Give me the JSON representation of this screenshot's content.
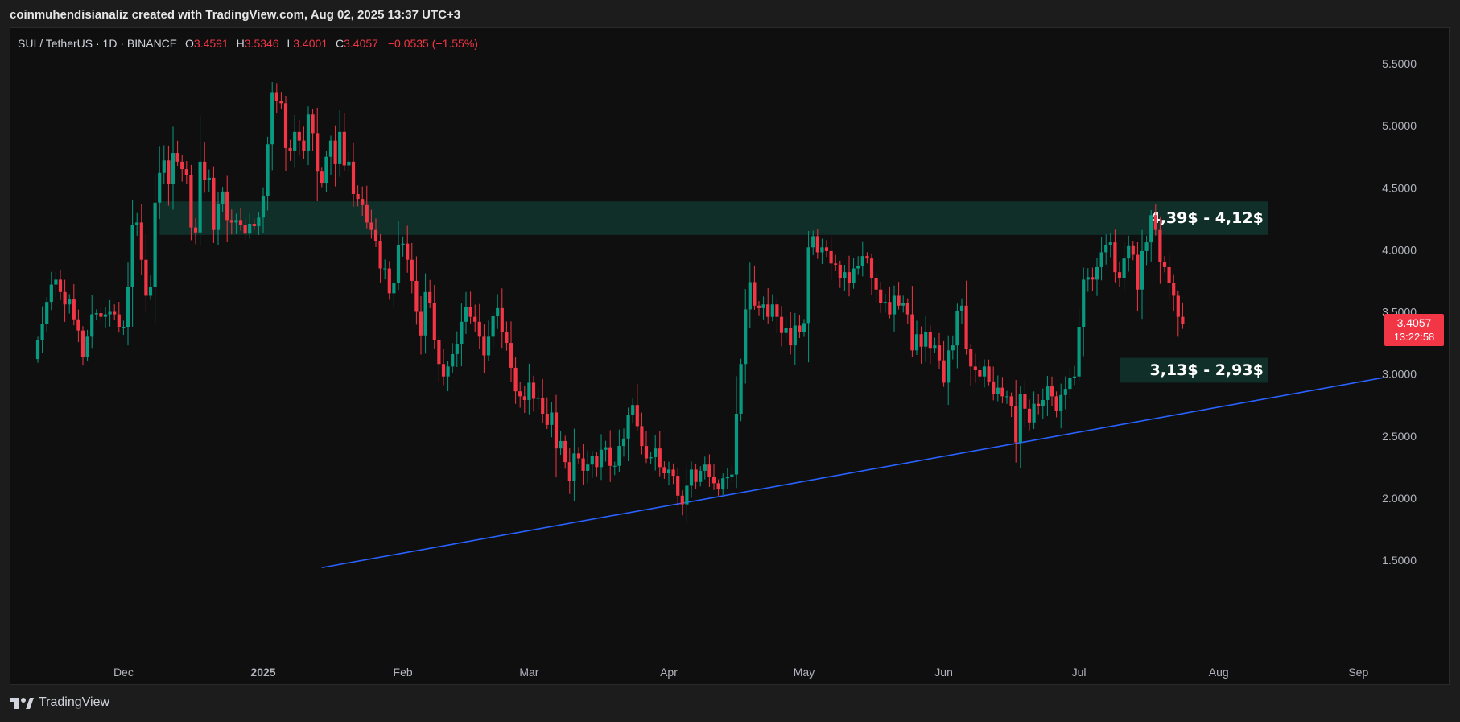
{
  "header": {
    "credit": "coinmuhendisianaliz created with TradingView.com, Aug 02, 2025 13:37 UTC+3"
  },
  "legend": {
    "symbol": "SUI / TetherUS · 1D · BINANCE",
    "o_label": "O",
    "o_value": "3.4591",
    "h_label": "H",
    "h_value": "3.5346",
    "l_label": "L",
    "l_value": "3.4001",
    "c_label": "C",
    "c_value": "3.4057",
    "change": "−0.0535 (−1.55%)"
  },
  "footer": {
    "brand": "TradingView"
  },
  "colors": {
    "background": "#0f0f0f",
    "up": "#089981",
    "down": "#f23645",
    "zone": "#0f2f28",
    "trendline": "#2962ff",
    "price_tag": "#f23645"
  },
  "chart_data": {
    "type": "candlestick",
    "symbol": "SUI / TetherUS",
    "interval": "1D",
    "exchange": "BINANCE",
    "ylim": [
      1.45,
      5.75
    ],
    "y_ticks": [
      "5.5000",
      "5.0000",
      "4.5000",
      "4.0000",
      "3.5000",
      "3.0000",
      "2.5000",
      "2.0000",
      "1.5000"
    ],
    "x_ticks": [
      {
        "label": "Dec",
        "date": "2024-12-01",
        "bold": false
      },
      {
        "label": "2025",
        "date": "2025-01-01",
        "bold": true
      },
      {
        "label": "Feb",
        "date": "2025-02-01",
        "bold": false
      },
      {
        "label": "Mar",
        "date": "2025-03-01",
        "bold": false
      },
      {
        "label": "Apr",
        "date": "2025-04-01",
        "bold": false
      },
      {
        "label": "May",
        "date": "2025-05-01",
        "bold": false
      },
      {
        "label": "Jun",
        "date": "2025-06-01",
        "bold": false
      },
      {
        "label": "Jul",
        "date": "2025-07-01",
        "bold": false
      },
      {
        "label": "Aug",
        "date": "2025-08-01",
        "bold": false
      },
      {
        "label": "Sep",
        "date": "2025-09-01",
        "bold": false
      }
    ],
    "start_date": "2024-11-12",
    "closes": [
      3.27,
      3.4,
      3.58,
      3.72,
      3.76,
      3.66,
      3.56,
      3.6,
      3.44,
      3.35,
      3.14,
      3.3,
      3.48,
      3.49,
      3.46,
      3.48,
      3.5,
      3.48,
      3.38,
      3.38,
      3.7,
      4.2,
      4.22,
      3.92,
      3.63,
      3.7,
      4.38,
      4.62,
      4.72,
      4.53,
      4.78,
      4.71,
      4.65,
      4.6,
      4.18,
      4.14,
      4.71,
      4.56,
      4.58,
      4.16,
      4.37,
      4.47,
      4.24,
      4.22,
      4.24,
      4.2,
      4.13,
      4.21,
      4.19,
      4.26,
      4.43,
      4.85,
      5.27,
      5.2,
      5.18,
      4.82,
      4.8,
      4.95,
      4.88,
      4.8,
      5.09,
      4.94,
      4.63,
      4.54,
      4.75,
      4.88,
      4.69,
      4.95,
      4.68,
      4.71,
      4.45,
      4.41,
      4.36,
      4.22,
      4.16,
      4.07,
      3.85,
      3.85,
      3.65,
      3.73,
      4.04,
      4.05,
      3.92,
      3.75,
      3.5,
      3.31,
      3.66,
      3.57,
      3.27,
      3.08,
      2.98,
      3.06,
      3.16,
      3.24,
      3.42,
      3.54,
      3.46,
      3.42,
      3.3,
      3.15,
      3.3,
      3.47,
      3.53,
      3.34,
      3.25,
      3.05,
      2.86,
      2.82,
      2.79,
      2.93,
      2.8,
      2.81,
      2.68,
      2.59,
      2.69,
      2.4,
      2.46,
      2.29,
      2.14,
      2.36,
      2.32,
      2.22,
      2.27,
      2.34,
      2.25,
      2.39,
      2.41,
      2.26,
      2.26,
      2.42,
      2.48,
      2.67,
      2.75,
      2.58,
      2.42,
      2.32,
      2.33,
      2.4,
      2.25,
      2.2,
      2.23,
      2.18,
      2.02,
      1.95,
      2.1,
      2.23,
      2.13,
      2.22,
      2.27,
      2.17,
      2.12,
      2.07,
      2.16,
      2.17,
      2.19,
      2.68,
      3.08,
      3.52,
      3.74,
      3.55,
      3.53,
      3.56,
      3.46,
      3.56,
      3.46,
      3.33,
      3.37,
      3.23,
      3.39,
      3.34,
      3.41,
      4.02,
      4.11,
      3.98,
      4.02,
      3.99,
      3.89,
      3.88,
      3.77,
      3.82,
      3.73,
      3.85,
      3.87,
      3.95,
      3.93,
      3.77,
      3.68,
      3.57,
      3.58,
      3.48,
      3.63,
      3.55,
      3.57,
      3.48,
      3.19,
      3.32,
      3.22,
      3.34,
      3.21,
      3.23,
      3.11,
      2.93,
      3.19,
      3.23,
      3.51,
      3.55,
      3.2,
      3.06,
      3.03,
      2.98,
      3.06,
      2.94,
      2.84,
      2.89,
      2.82,
      2.82,
      2.74,
      2.45,
      2.84,
      2.72,
      2.61,
      2.76,
      2.74,
      2.79,
      2.9,
      2.82,
      2.7,
      2.83,
      2.88,
      2.97,
      2.98,
      3.38,
      3.76,
      3.78,
      3.76,
      3.86,
      3.98,
      4.04,
      4.06,
      3.82,
      3.77,
      3.93,
      4.03,
      3.96,
      3.68,
      3.99,
      4.06,
      4.28,
      4.16,
      3.9,
      3.86,
      3.73,
      3.63,
      3.46,
      3.4057
    ],
    "zones": [
      {
        "label": "4,39$ - 4,12$",
        "high": 4.39,
        "low": 4.12,
        "from": "2024-12-09",
        "to": "2025-08-12"
      },
      {
        "label": "3,13$ - 2,93$",
        "high": 3.13,
        "low": 2.93,
        "from": "2025-07-10",
        "to": "2025-08-12"
      }
    ],
    "trendline": {
      "from": {
        "date": "2025-01-14",
        "price": 1.44
      },
      "to": {
        "date": "2025-09-08",
        "price": 2.98
      }
    },
    "last_price": "3.4057",
    "countdown": "13:22:58"
  }
}
